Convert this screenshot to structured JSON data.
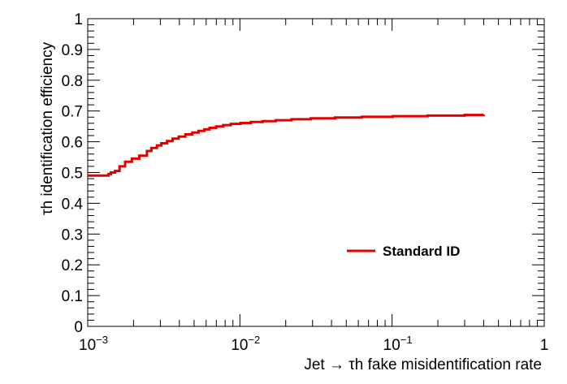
{
  "chart_data": {
    "type": "line",
    "title": "",
    "xlabel": "Jet → τh fake misidentification rate",
    "ylabel": "τh identification efficiency",
    "x_scale": "log",
    "xlim": [
      0.001,
      1
    ],
    "ylim": [
      0,
      1
    ],
    "grid": false,
    "legend_position": "center-right",
    "x_tick_labels": [
      {
        "value": 0.001,
        "base": "10",
        "exp": "−3"
      },
      {
        "value": 0.01,
        "base": "10",
        "exp": "−2"
      },
      {
        "value": 0.1,
        "base": "10",
        "exp": "−1"
      },
      {
        "value": 1,
        "label": "1"
      }
    ],
    "y_tick_labels": [
      "0",
      "0.1",
      "0.2",
      "0.3",
      "0.4",
      "0.5",
      "0.6",
      "0.7",
      "0.8",
      "0.9",
      "1"
    ],
    "series": [
      {
        "name": "Standard ID",
        "color": "#e00000",
        "x": [
          0.001,
          0.00137,
          0.00142,
          0.00151,
          0.00162,
          0.00176,
          0.00195,
          0.00218,
          0.00245,
          0.00262,
          0.00285,
          0.00304,
          0.00332,
          0.00361,
          0.00396,
          0.00438,
          0.00487,
          0.00535,
          0.00584,
          0.00632,
          0.00697,
          0.00777,
          0.00871,
          0.0101,
          0.0118,
          0.0141,
          0.0172,
          0.0218,
          0.0292,
          0.0422,
          0.0632,
          0.101,
          0.171,
          0.3,
          0.4
        ],
        "y": [
          0.49,
          0.495,
          0.5,
          0.505,
          0.52,
          0.535,
          0.545,
          0.555,
          0.57,
          0.58,
          0.588,
          0.595,
          0.602,
          0.61,
          0.617,
          0.624,
          0.63,
          0.635,
          0.64,
          0.645,
          0.65,
          0.654,
          0.658,
          0.661,
          0.664,
          0.667,
          0.67,
          0.673,
          0.676,
          0.679,
          0.681,
          0.683,
          0.685,
          0.687,
          0.688
        ]
      }
    ]
  }
}
